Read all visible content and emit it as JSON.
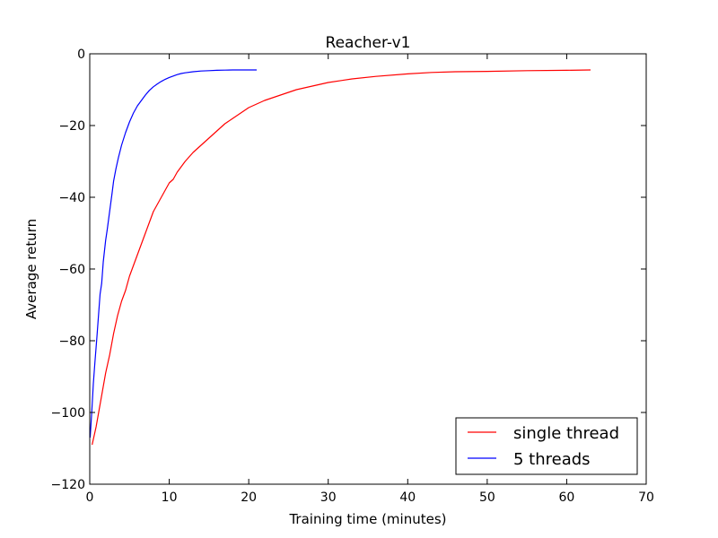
{
  "chart_data": {
    "type": "line",
    "title": "Reacher-v1",
    "xlabel": "Training time (minutes)",
    "ylabel": "Average return",
    "xlim": [
      0,
      70
    ],
    "ylim": [
      -120,
      0
    ],
    "xticks": [
      0,
      10,
      20,
      30,
      40,
      50,
      60,
      70
    ],
    "yticks": [
      0,
      -20,
      -40,
      -60,
      -80,
      -100,
      -120
    ],
    "xtick_labels": [
      "0",
      "10",
      "20",
      "30",
      "40",
      "50",
      "60",
      "70"
    ],
    "ytick_labels": [
      "0",
      "−20",
      "−40",
      "−60",
      "−80",
      "−100",
      "−120"
    ],
    "grid": false,
    "legend_position": "lower-right",
    "series": [
      {
        "name": "single thread",
        "color": "#ff0000",
        "x": [
          0.3,
          0.8,
          1.2,
          1.6,
          2.0,
          2.5,
          3.0,
          3.5,
          4.0,
          4.5,
          5.0,
          5.5,
          6.0,
          6.5,
          7.0,
          7.5,
          8.0,
          8.5,
          9.0,
          9.5,
          10.0,
          10.5,
          11.0,
          12.0,
          13.0,
          14.0,
          15.0,
          16.0,
          17.0,
          18.0,
          19.0,
          20.0,
          21.0,
          22.0,
          24.0,
          26.0,
          28.0,
          30.0,
          33.0,
          36.0,
          40.0,
          43.0,
          46.0,
          50.0,
          55.0,
          60.0,
          63.0
        ],
        "y": [
          -109,
          -104,
          -99,
          -94,
          -89,
          -84,
          -78,
          -73,
          -69,
          -66,
          -62,
          -59,
          -56,
          -53,
          -50,
          -47,
          -44,
          -42,
          -40,
          -38,
          -36,
          -35,
          -33,
          -30,
          -27.5,
          -25.5,
          -23.5,
          -21.5,
          -19.5,
          -18,
          -16.5,
          -15,
          -14,
          -13,
          -11.5,
          -10,
          -9,
          -8,
          -7,
          -6.3,
          -5.6,
          -5.2,
          -5.0,
          -4.9,
          -4.7,
          -4.6,
          -4.5
        ]
      },
      {
        "name": "5 threads",
        "color": "#0000ff",
        "x": [
          0.05,
          0.25,
          0.45,
          0.65,
          0.9,
          1.1,
          1.3,
          1.5,
          1.7,
          2.0,
          2.2,
          2.5,
          2.8,
          3.0,
          3.3,
          3.6,
          4.0,
          4.5,
          5.0,
          5.5,
          6.0,
          6.5,
          7.0,
          7.5,
          8.0,
          8.5,
          9.0,
          9.5,
          10.0,
          10.5,
          11.0,
          11.5,
          12.0,
          13.0,
          14.0,
          15.0,
          16.0,
          17.0,
          18.0,
          19.0,
          20.0,
          21.0
        ],
        "y": [
          -107,
          -100,
          -92,
          -86,
          -79,
          -73,
          -67,
          -64,
          -58,
          -52,
          -49,
          -44,
          -39,
          -35.5,
          -32,
          -29,
          -25.5,
          -22,
          -19,
          -16.5,
          -14.5,
          -13,
          -11.5,
          -10.2,
          -9.2,
          -8.4,
          -7.7,
          -7.1,
          -6.6,
          -6.2,
          -5.8,
          -5.5,
          -5.3,
          -5.0,
          -4.8,
          -4.7,
          -4.6,
          -4.55,
          -4.5,
          -4.5,
          -4.5,
          -4.5
        ]
      }
    ]
  }
}
